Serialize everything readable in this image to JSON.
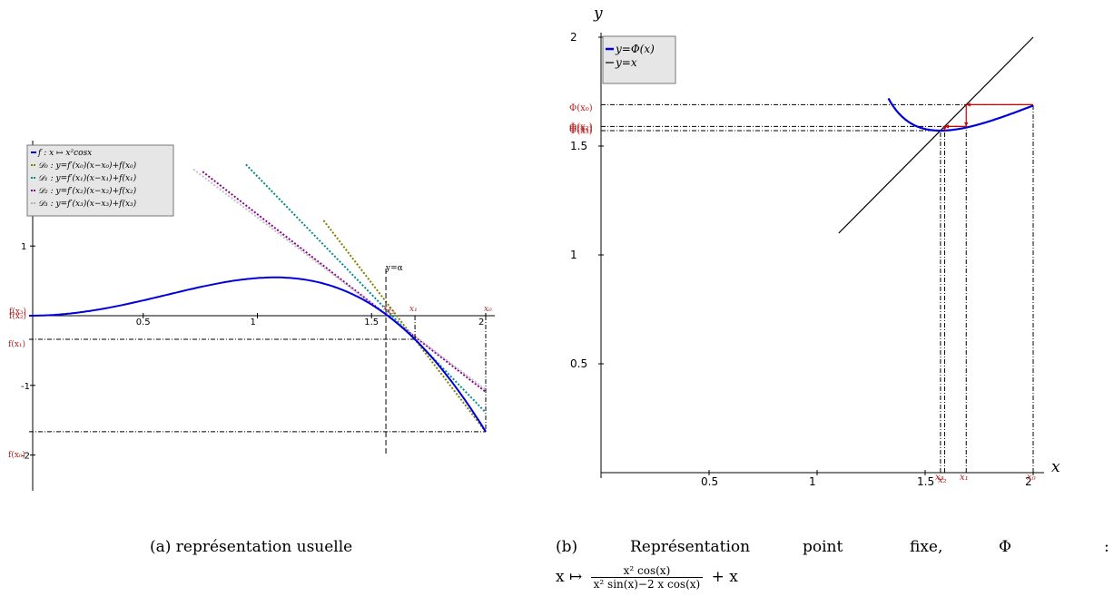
{
  "captions": {
    "a": "(a) représentation usuelle",
    "b_label": "(b)",
    "b_w1": "Représentation",
    "b_w2": "point",
    "b_w3": "fixe,",
    "b_w4": "Φ",
    "b_w5": ":",
    "b_map": "x ↦",
    "b_num": "x² cos(x)",
    "b_den": "x² sin(x)−2 x cos(x)",
    "b_tail": "+ x"
  },
  "chart_data": [
    {
      "type": "line",
      "title": "",
      "xlabel": "",
      "ylabel": "",
      "xlim": [
        0,
        2.03
      ],
      "ylim": [
        -2.1,
        2.45
      ],
      "x_ticks": [
        {
          "value": 0.5,
          "label": "0.5"
        },
        {
          "value": 1,
          "label": "1"
        },
        {
          "value": 1.5,
          "label": "1.5"
        },
        {
          "value": 2,
          "label": "2"
        }
      ],
      "y_ticks": [
        {
          "value": 1,
          "label": "1"
        },
        {
          "value": -1,
          "label": "-1"
        },
        {
          "value": -2,
          "label": "-2"
        }
      ],
      "legend": {
        "placement": "top-left",
        "entries": [
          {
            "label": "f : x ↦ x²cosx",
            "color": "#0000dd",
            "style": "solid"
          },
          {
            "label": "𝒟₀ : y=f′(x₀)(x−x₀)+f(x₀)",
            "color": "#808000",
            "style": "dotted"
          },
          {
            "label": "𝒟₁ : y=f′(x₁)(x−x₁)+f(x₁)",
            "color": "#008b8b",
            "style": "dotted"
          },
          {
            "label": "𝒟₂ : y=f′(x₂)(x−x₂)+f(x₂)",
            "color": "#8b008b",
            "style": "dotted"
          },
          {
            "label": "𝒟₃ : y=f′(x₃)(x−x₃)+f(x₃)",
            "color": "#b0b0b0",
            "style": "dotted"
          }
        ]
      },
      "curve": {
        "name": "f : x ↦ x²cosx",
        "color": "#0000dd",
        "x_range": [
          0,
          2
        ]
      },
      "iterates": [
        {
          "name": "x₀",
          "x": 2.0,
          "fx": -1.665,
          "x_label": "x₀",
          "y_label": "f(x₀)"
        },
        {
          "name": "x₁",
          "x": 1.6901,
          "fx": -0.339,
          "x_label": "x₁",
          "y_label": "f(x₁)"
        },
        {
          "name": "x₂",
          "x": 1.5901,
          "fx": -0.049,
          "x_label": "x₂",
          "y_label": "f(x₂)"
        },
        {
          "name": "x₃",
          "x": 1.571,
          "fx": -0.001,
          "x_label": "x₃",
          "y_label": "f(x₃)"
        }
      ],
      "tangents": [
        {
          "name": "𝒟₀",
          "x0": 2.0,
          "y0": -1.665,
          "slope": -4.27,
          "color": "#808000",
          "x_from": 1.29,
          "x_to": 2.0
        },
        {
          "name": "𝒟₁",
          "x0": 1.6901,
          "y0": -0.339,
          "slope": -3.39,
          "color": "#008b8b",
          "x_from": 0.95,
          "x_to": 2.0
        },
        {
          "name": "𝒟₂",
          "x0": 1.5901,
          "y0": -0.049,
          "slope": -2.55,
          "color": "#8b008b",
          "x_from": 0.76,
          "x_to": 2.0
        },
        {
          "name": "𝒟₃",
          "x0": 1.571,
          "y0": -0.001,
          "slope": -2.47,
          "color": "#c0c0c0",
          "x_from": 0.72,
          "x_to": 2.0
        }
      ],
      "root": {
        "x": 1.5708,
        "label": "y=α"
      }
    },
    {
      "type": "line",
      "title": "",
      "xlabel": "x",
      "ylabel": "y",
      "xlim": [
        0,
        2.05
      ],
      "ylim": [
        0,
        2.02
      ],
      "x_ticks": [
        {
          "value": 0.5,
          "label": "0.5"
        },
        {
          "value": 1,
          "label": "1"
        },
        {
          "value": 1.5,
          "label": "1.5"
        },
        {
          "value": 2,
          "label": "2"
        }
      ],
      "y_ticks": [
        {
          "value": 0.5,
          "label": "0.5"
        },
        {
          "value": 1,
          "label": "1"
        },
        {
          "value": 1.5,
          "label": "1.5"
        },
        {
          "value": 2,
          "label": "2"
        }
      ],
      "legend": {
        "placement": "top-left",
        "entries": [
          {
            "label": "y=Φ(x)",
            "color": "#0000dd",
            "style": "solid"
          },
          {
            "label": "y=x",
            "color": "#000000",
            "style": "solid"
          }
        ]
      },
      "curve": {
        "name": "y=Φ(x)",
        "color": "#0000dd",
        "x_range": [
          1.3,
          2
        ]
      },
      "identity": {
        "name": "y=x",
        "color": "#000000",
        "x_range": [
          1.1,
          2
        ]
      },
      "iterates": [
        {
          "name": "x₀",
          "x": 2.0,
          "phi": 1.6901,
          "x_label": "x₀",
          "y_label": "Φ(x₀)"
        },
        {
          "name": "x₁",
          "x": 1.6901,
          "phi": 1.5901,
          "x_label": "x₁",
          "y_label": "Φ(x₁)"
        },
        {
          "name": "x₂",
          "x": 1.5901,
          "phi": 1.571,
          "x_label": "x₂",
          "y_label": "Φ(x₂)"
        },
        {
          "name": "x₃",
          "x": 1.571,
          "phi": 1.5708,
          "x_label": "x₃",
          "y_label": "Φ(x₃)"
        }
      ]
    }
  ]
}
